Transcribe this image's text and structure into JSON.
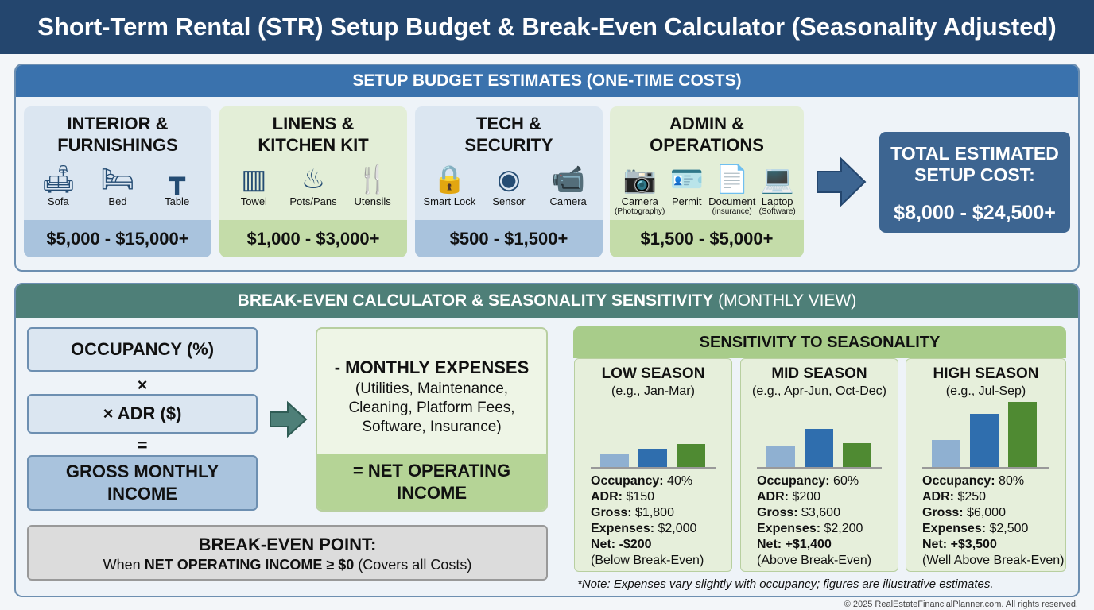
{
  "title": "Short-Term Rental (STR) Setup Budget & Break-Even Calculator (Seasonality Adjusted)",
  "setup": {
    "header": "SETUP BUDGET ESTIMATES (ONE-TIME COSTS)",
    "categories": [
      {
        "title1": "INTERIOR &",
        "title2": "FURNISHINGS",
        "items": [
          {
            "label": "Sofa",
            "icon": "sofa-icon"
          },
          {
            "label": "Bed",
            "icon": "bed-icon"
          },
          {
            "label": "Table",
            "icon": "table-icon"
          }
        ],
        "price": "$5,000 - $15,000+"
      },
      {
        "title1": "LINENS &",
        "title2": "KITCHEN KIT",
        "items": [
          {
            "label": "Towel",
            "icon": "towel-icon"
          },
          {
            "label": "Pots/Pans",
            "icon": "pot-icon"
          },
          {
            "label": "Utensils",
            "icon": "utensils-icon"
          }
        ],
        "price": "$1,000 - $3,000+"
      },
      {
        "title1": "TECH &",
        "title2": "SECURITY",
        "items": [
          {
            "label": "Smart Lock",
            "icon": "lock-icon"
          },
          {
            "label": "Sensor",
            "icon": "sensor-icon"
          },
          {
            "label": "Camera",
            "icon": "security-camera-icon"
          }
        ],
        "price": "$500 - $1,500+"
      },
      {
        "title1": "ADMIN &",
        "title2": "OPERATIONS",
        "items": [
          {
            "label": "Camera",
            "sub": "(Photography)",
            "icon": "camera-icon"
          },
          {
            "label": "Permit",
            "sub": "",
            "icon": "id-card-icon"
          },
          {
            "label": "Document",
            "sub": "(insurance)",
            "icon": "document-icon"
          },
          {
            "label": "Laptop",
            "sub": "(Software)",
            "icon": "laptop-icon"
          }
        ],
        "price": "$1,500 - $5,000+"
      }
    ],
    "total_label1": "TOTAL ESTIMATED",
    "total_label2": "SETUP COST:",
    "total_value": "$8,000 - $24,500+"
  },
  "breakeven": {
    "header": "BREAK-EVEN CALCULATOR & SEASONALITY SENSITIVITY",
    "header_suffix": "(MONTHLY VIEW)",
    "occupancy": "OCCUPANCY (%)",
    "times": "×",
    "adr": "× ADR ($)",
    "equals": "=",
    "gross1": "GROSS MONTHLY",
    "gross2": "INCOME",
    "expenses_title": "- MONTHLY EXPENSES",
    "expenses_detail": "(Utilities, Maintenance, Cleaning, Platform Fees, Software, Insurance)",
    "noi1": "= NET OPERATING",
    "noi2": "INCOME",
    "bep_title": "BREAK-EVEN POINT:",
    "bep_prefix": "When",
    "bep_bold": "NET OPERATING INCOME ≥ $0",
    "bep_suffix": "(Covers all Costs)"
  },
  "sensitivity": {
    "header": "SENSITIVITY TO SEASONALITY",
    "labels": {
      "occ": "Occupancy:",
      "adr": "ADR:",
      "gross": "Gross:",
      "exp": "Expenses:",
      "net": "Net:"
    },
    "seasons": [
      {
        "name": "LOW SEASON",
        "months": "(e.g., Jan-Mar)",
        "occ": "40%",
        "adr": "$150",
        "gross": "$1,800",
        "exp": "$2,000",
        "net": "-$200",
        "status": "(Below Break-Even)",
        "bars": [
          0.2,
          0.28,
          0.35
        ]
      },
      {
        "name": "MID SEASON",
        "months": "(e.g., Apr-Jun, Oct-Dec)",
        "occ": "60%",
        "adr": "$200",
        "gross": "$3,600",
        "exp": "$2,200",
        "net": "+$1,400",
        "status": "(Above Break-Even)",
        "bars": [
          0.33,
          0.59,
          0.37
        ]
      },
      {
        "name": "HIGH SEASON",
        "months": "(e.g., Jul-Sep)",
        "occ": "80%",
        "adr": "$250",
        "gross": "$6,000",
        "exp": "$2,500",
        "net": "+$3,500",
        "status": "(Well Above Break-Even)",
        "bars": [
          0.42,
          0.82,
          1.0
        ]
      }
    ],
    "note": "*Note: Expenses vary slightly with occupancy; figures are illustrative estimates."
  },
  "footer": "© 2025 RealEstateFinancialPlanner.com. All rights reserved.",
  "colors": {
    "navy": "#24466e",
    "blue_header": "#3a72ad",
    "green_header": "#4e7f78",
    "bar_light": "#8fb0d1",
    "bar_blue": "#2f6eae",
    "bar_green": "#4f8a32"
  }
}
